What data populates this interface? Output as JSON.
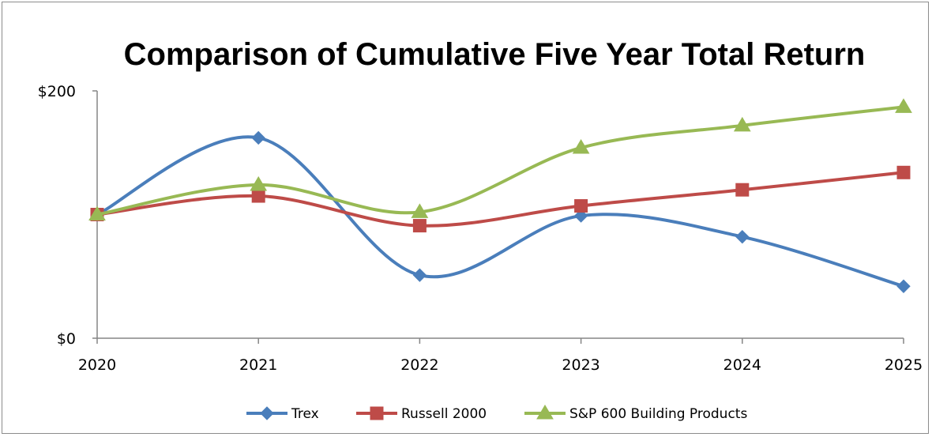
{
  "chart_data": {
    "type": "line",
    "title": "Comparison of Cumulative Five Year Total Return",
    "x": [
      "2020",
      "2021",
      "2022",
      "2023",
      "2024",
      "2025"
    ],
    "y_ticks": [
      "$0",
      "$200"
    ],
    "ylim": [
      0,
      200
    ],
    "grid": false,
    "legend_position": "bottom",
    "smooth": true,
    "series": [
      {
        "name": "Trex",
        "color": "#4a7ebb",
        "marker": "diamond",
        "values": [
          100,
          162,
          51,
          99,
          82,
          42
        ]
      },
      {
        "name": "Russell 2000",
        "color": "#be4b48",
        "marker": "square",
        "values": [
          100,
          115,
          91,
          107,
          120,
          134
        ]
      },
      {
        "name": "S&P 600 Building Products",
        "color": "#98b954",
        "marker": "triangle",
        "values": [
          100,
          124,
          102,
          154,
          172,
          187
        ]
      }
    ]
  }
}
